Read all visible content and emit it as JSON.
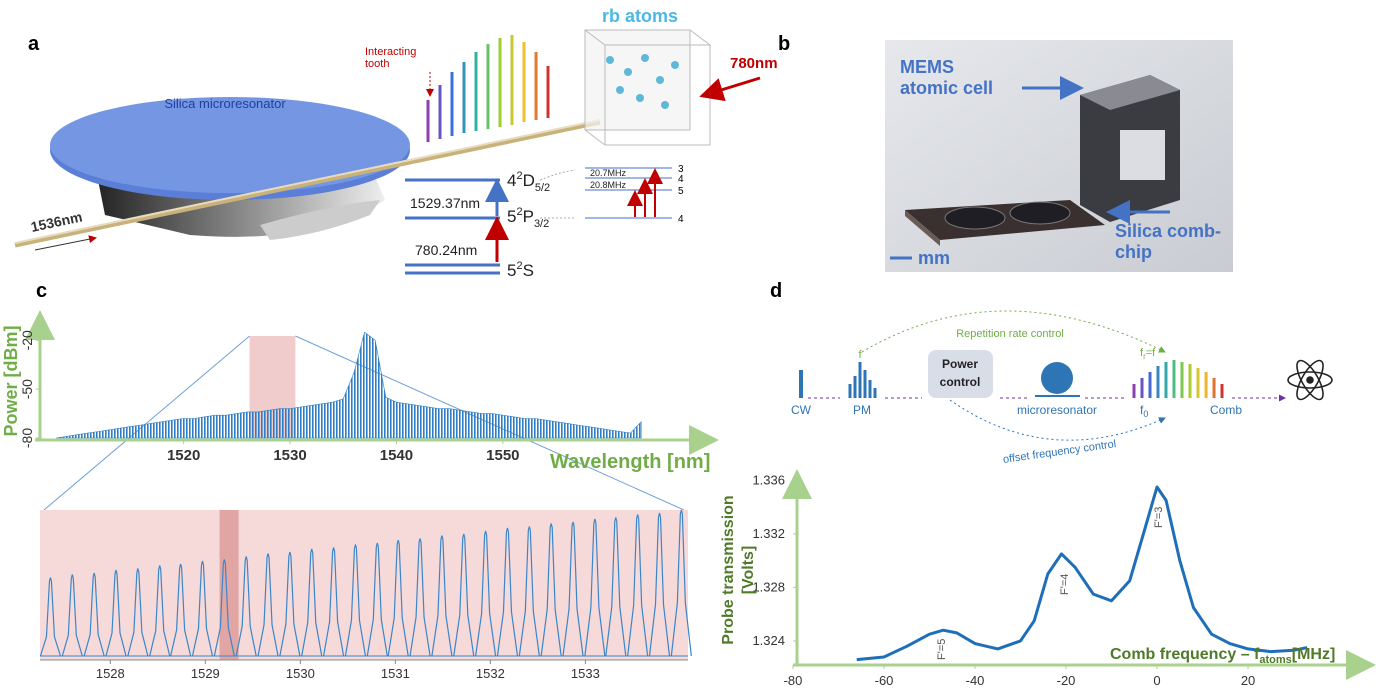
{
  "panel_a": {
    "label": "a",
    "rb_atoms": "rb atoms",
    "interacting_tooth": [
      "Interacting",
      "tooth"
    ],
    "pump": "780nm",
    "resonator": "Silica microresonator",
    "input": "1536nm",
    "level_4d": [
      "4",
      "2",
      "D",
      "5/2"
    ],
    "level_5p": [
      "5",
      "2",
      "P",
      "3/2"
    ],
    "level_5s": [
      "5",
      "2",
      "S"
    ],
    "wl_upper": "1529.37nm",
    "wl_lower": "780.24nm",
    "split_upper": "20.7MHz",
    "split_lower": "20.8MHz",
    "hyperfine": [
      "3",
      "4",
      "5",
      "4"
    ]
  },
  "panel_b": {
    "label": "b",
    "cell": [
      "MEMS",
      "atomic cell"
    ],
    "chip": [
      "Silica comb-",
      "chip"
    ],
    "scale": "mm"
  },
  "panel_c": {
    "label": "c"
  },
  "panel_d": {
    "label": "d",
    "rep_control": "Repetition rate control",
    "power_control": [
      "Power",
      "control"
    ],
    "cw": "CW",
    "pm": "PM",
    "resonator": "microresonator",
    "comb": "Comb",
    "f0": [
      "f",
      "0"
    ],
    "offset_control": "offset frequency control",
    "pm_f": "f",
    "fr": [
      "f",
      "r",
      "=f"
    ],
    "annotations": [
      "F'=5",
      "F'=4",
      "F'=3"
    ]
  },
  "chart_data": [
    {
      "type": "area",
      "y_label": "Power [dBm]",
      "x_label": "Wavelength [nm]",
      "x": [
        1508,
        1509,
        1510,
        1511,
        1512,
        1513,
        1514,
        1515,
        1516,
        1517,
        1518,
        1519,
        1520,
        1521,
        1522,
        1523,
        1524,
        1525,
        1526,
        1527,
        1528,
        1529,
        1530,
        1531,
        1532,
        1533,
        1534,
        1535,
        1536,
        1537,
        1538,
        1539,
        1540,
        1541,
        1542,
        1543,
        1544,
        1545,
        1546,
        1547,
        1548,
        1549,
        1550,
        1551,
        1552,
        1553,
        1554,
        1555,
        1556,
        1557,
        1558,
        1559,
        1560,
        1561,
        1562,
        1563
      ],
      "values": [
        -80,
        -79,
        -78,
        -77,
        -76,
        -75,
        -74,
        -73,
        -72,
        -71,
        -70,
        -69,
        -68,
        -68,
        -67,
        -66,
        -66,
        -65,
        -64,
        -64,
        -63,
        -62,
        -62,
        -61,
        -60,
        -59,
        -58,
        -56,
        -40,
        -15,
        -20,
        -55,
        -58,
        -59,
        -60,
        -61,
        -62,
        -62,
        -63,
        -64,
        -65,
        -65,
        -66,
        -67,
        -68,
        -68,
        -69,
        -70,
        -71,
        -72,
        -73,
        -74,
        -75,
        -76,
        -77,
        -70
      ],
      "color": "#2f7ec4",
      "xlim": [
        1506.5,
        1569
      ],
      "ylim": [
        -80,
        -10
      ],
      "xticks": [
        1520,
        1530,
        1540,
        1550
      ],
      "yticks": [
        -80,
        -50,
        -20
      ],
      "highlight": [
        1526.2,
        1530.5
      ]
    },
    {
      "type": "peaks",
      "x": [
        1527.37,
        1527.6,
        1527.83,
        1528.06,
        1528.29,
        1528.52,
        1528.74,
        1528.97,
        1529.2,
        1529.43,
        1529.66,
        1529.89,
        1530.12,
        1530.35,
        1530.58,
        1530.81,
        1531.03,
        1531.26,
        1531.49,
        1531.72,
        1531.95,
        1532.18,
        1532.41,
        1532.64,
        1532.87,
        1533.1,
        1533.32,
        1533.55,
        1533.78,
        1534.01
      ],
      "values": [
        0.55,
        0.57,
        0.58,
        0.6,
        0.61,
        0.63,
        0.64,
        0.66,
        0.67,
        0.69,
        0.71,
        0.72,
        0.74,
        0.75,
        0.77,
        0.78,
        0.8,
        0.81,
        0.83,
        0.84,
        0.86,
        0.88,
        0.89,
        0.91,
        0.92,
        0.94,
        0.95,
        0.97,
        0.98,
        1.0
      ],
      "color": "#3b86c8",
      "xlim": [
        1527.26,
        1534.08
      ],
      "ylim": [
        0,
        1
      ],
      "xticks": [
        1528,
        1529,
        1530,
        1531,
        1532,
        1533
      ],
      "highlight": [
        1529.15,
        1529.35
      ]
    },
    {
      "type": "line",
      "y_label": [
        "Probe transmission",
        "[Volts]"
      ],
      "x_label": [
        "Comb frequency – f",
        "atoms",
        "[MHz]"
      ],
      "x": [
        -66,
        -60,
        -55,
        -50,
        -47,
        -44,
        -40,
        -35,
        -30,
        -27,
        -24,
        -21,
        -18,
        -14,
        -10,
        -6,
        -3,
        0,
        2,
        5,
        8,
        12,
        16,
        20,
        25,
        30,
        33
      ],
      "values": [
        1.3226,
        1.3228,
        1.3236,
        1.3245,
        1.3248,
        1.3246,
        1.3238,
        1.3234,
        1.324,
        1.3255,
        1.329,
        1.3305,
        1.3295,
        1.3275,
        1.327,
        1.3285,
        1.332,
        1.3355,
        1.3345,
        1.33,
        1.3265,
        1.3245,
        1.3238,
        1.3234,
        1.3232,
        1.3233,
        1.3235
      ],
      "color": "#1f6fb8",
      "xlim": [
        -80,
        46.8
      ],
      "ylim": [
        1.3222,
        1.3364
      ],
      "xticks": [
        -80,
        -60,
        -40,
        -20,
        0,
        20
      ],
      "yticks": [
        1.324,
        1.328,
        1.332,
        1.336
      ]
    }
  ]
}
